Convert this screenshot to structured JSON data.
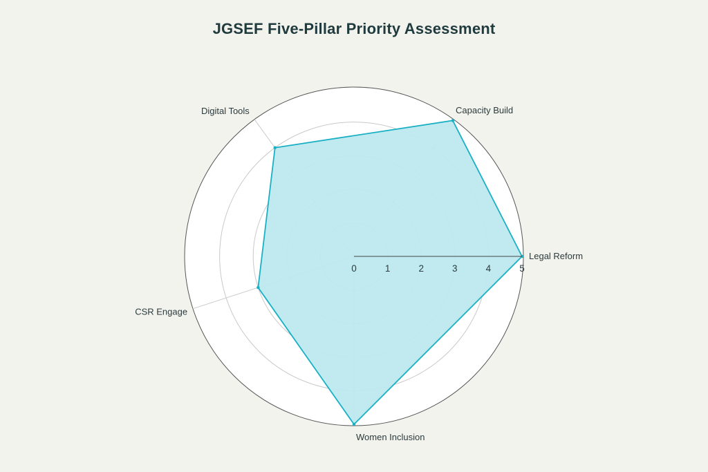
{
  "chart_data": {
    "type": "radar",
    "title": "JGSEF Five-Pillar Priority Assessment",
    "categories": [
      "Legal Reform",
      "Capacity Build",
      "Digital Tools",
      "CSR Engage",
      "Women Inclusion"
    ],
    "series": [
      {
        "values": [
          5,
          5,
          4,
          3,
          5
        ],
        "color": "#1ab0c4",
        "fill": "#bde9ef"
      }
    ],
    "rlim": [
      0,
      5
    ],
    "ticks": [
      "0",
      "1",
      "2",
      "3",
      "4",
      "5"
    ],
    "grid": true
  }
}
